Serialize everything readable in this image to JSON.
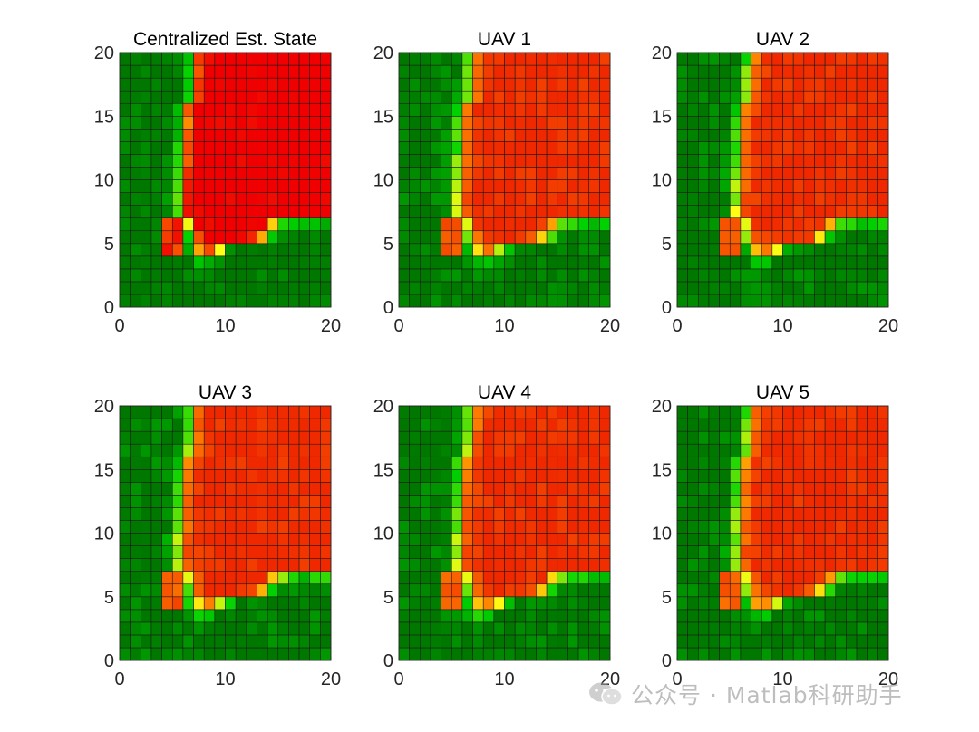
{
  "figure": {
    "xlim": [
      0,
      20
    ],
    "ylim": [
      0,
      20
    ],
    "xticks": [
      0,
      10,
      20
    ],
    "yticks": [
      0,
      5,
      10,
      15,
      20
    ],
    "grid_size": 20,
    "colormap": "green-to-red"
  },
  "chart_data": [
    {
      "type": "heatmap",
      "title": "Centralized Est. State",
      "variant": "central",
      "xlim": [
        0,
        20
      ],
      "ylim": [
        0,
        20
      ]
    },
    {
      "type": "heatmap",
      "title": "UAV 1",
      "variant": "uav1",
      "xlim": [
        0,
        20
      ],
      "ylim": [
        0,
        20
      ]
    },
    {
      "type": "heatmap",
      "title": "UAV 2",
      "variant": "uav2",
      "xlim": [
        0,
        20
      ],
      "ylim": [
        0,
        20
      ]
    },
    {
      "type": "heatmap",
      "title": "UAV 3",
      "variant": "uav3",
      "xlim": [
        0,
        20
      ],
      "ylim": [
        0,
        20
      ]
    },
    {
      "type": "heatmap",
      "title": "UAV 4",
      "variant": "uav4",
      "xlim": [
        0,
        20
      ],
      "ylim": [
        0,
        20
      ]
    },
    {
      "type": "heatmap",
      "title": "UAV 5",
      "variant": "uav5",
      "xlim": [
        0,
        20
      ],
      "ylim": [
        0,
        20
      ]
    }
  ],
  "watermark": {
    "text": "公众号 · Matlab科研助手"
  }
}
